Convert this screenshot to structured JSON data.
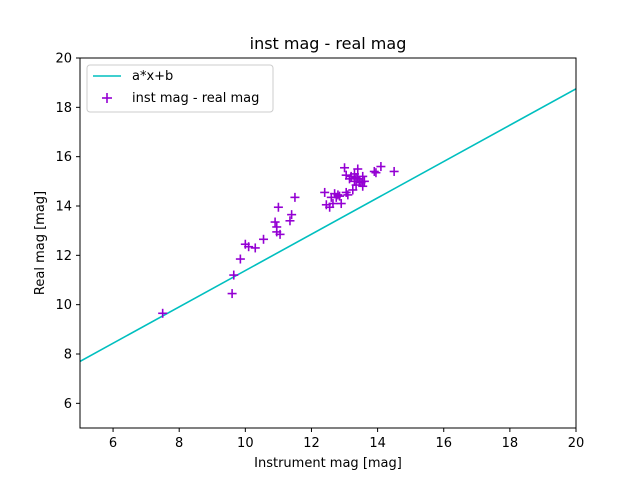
{
  "chart_data": {
    "type": "scatter",
    "title": "inst mag - real mag",
    "xlabel": "Instrument mag [mag]",
    "ylabel": "Real mag [mag]",
    "xlim": [
      5,
      20
    ],
    "ylim": [
      5,
      20
    ],
    "xticks": [
      "6",
      "8",
      "10",
      "12",
      "14",
      "16",
      "18",
      "20"
    ],
    "yticks": [
      "6",
      "8",
      "10",
      "12",
      "14",
      "16",
      "18",
      "20"
    ],
    "grid": false,
    "legend_position": "upper-left",
    "line": {
      "name": "a*x+b",
      "color": "#00bfbf",
      "x": [
        5,
        20
      ],
      "y": [
        7.7,
        18.75
      ]
    },
    "scatter": {
      "name": "inst mag - real mag",
      "color": "#9400d3",
      "marker": "plus",
      "x": [
        7.5,
        9.6,
        9.65,
        9.85,
        10.0,
        10.1,
        10.3,
        10.55,
        10.9,
        10.95,
        10.95,
        11.0,
        11.05,
        11.35,
        11.4,
        11.5,
        12.4,
        12.45,
        12.55,
        12.6,
        12.65,
        12.7,
        12.75,
        12.8,
        12.85,
        12.9,
        13.0,
        13.05,
        13.05,
        13.1,
        13.15,
        13.2,
        13.25,
        13.3,
        13.3,
        13.35,
        13.35,
        13.4,
        13.4,
        13.45,
        13.5,
        13.55,
        13.55,
        13.6,
        13.9,
        13.95,
        14.1,
        14.5
      ],
      "y": [
        9.65,
        10.45,
        11.2,
        11.85,
        12.45,
        12.35,
        12.3,
        12.65,
        13.35,
        13.15,
        12.95,
        13.95,
        12.85,
        13.4,
        13.65,
        14.35,
        14.55,
        14.05,
        13.95,
        14.35,
        14.1,
        14.5,
        14.35,
        14.45,
        14.4,
        14.1,
        15.55,
        14.55,
        15.25,
        14.45,
        15.1,
        15.2,
        14.65,
        15.3,
        15.0,
        15.15,
        14.85,
        15.5,
        15.1,
        15.0,
        14.95,
        15.2,
        14.8,
        15.0,
        15.4,
        15.35,
        15.6,
        15.4
      ]
    }
  }
}
